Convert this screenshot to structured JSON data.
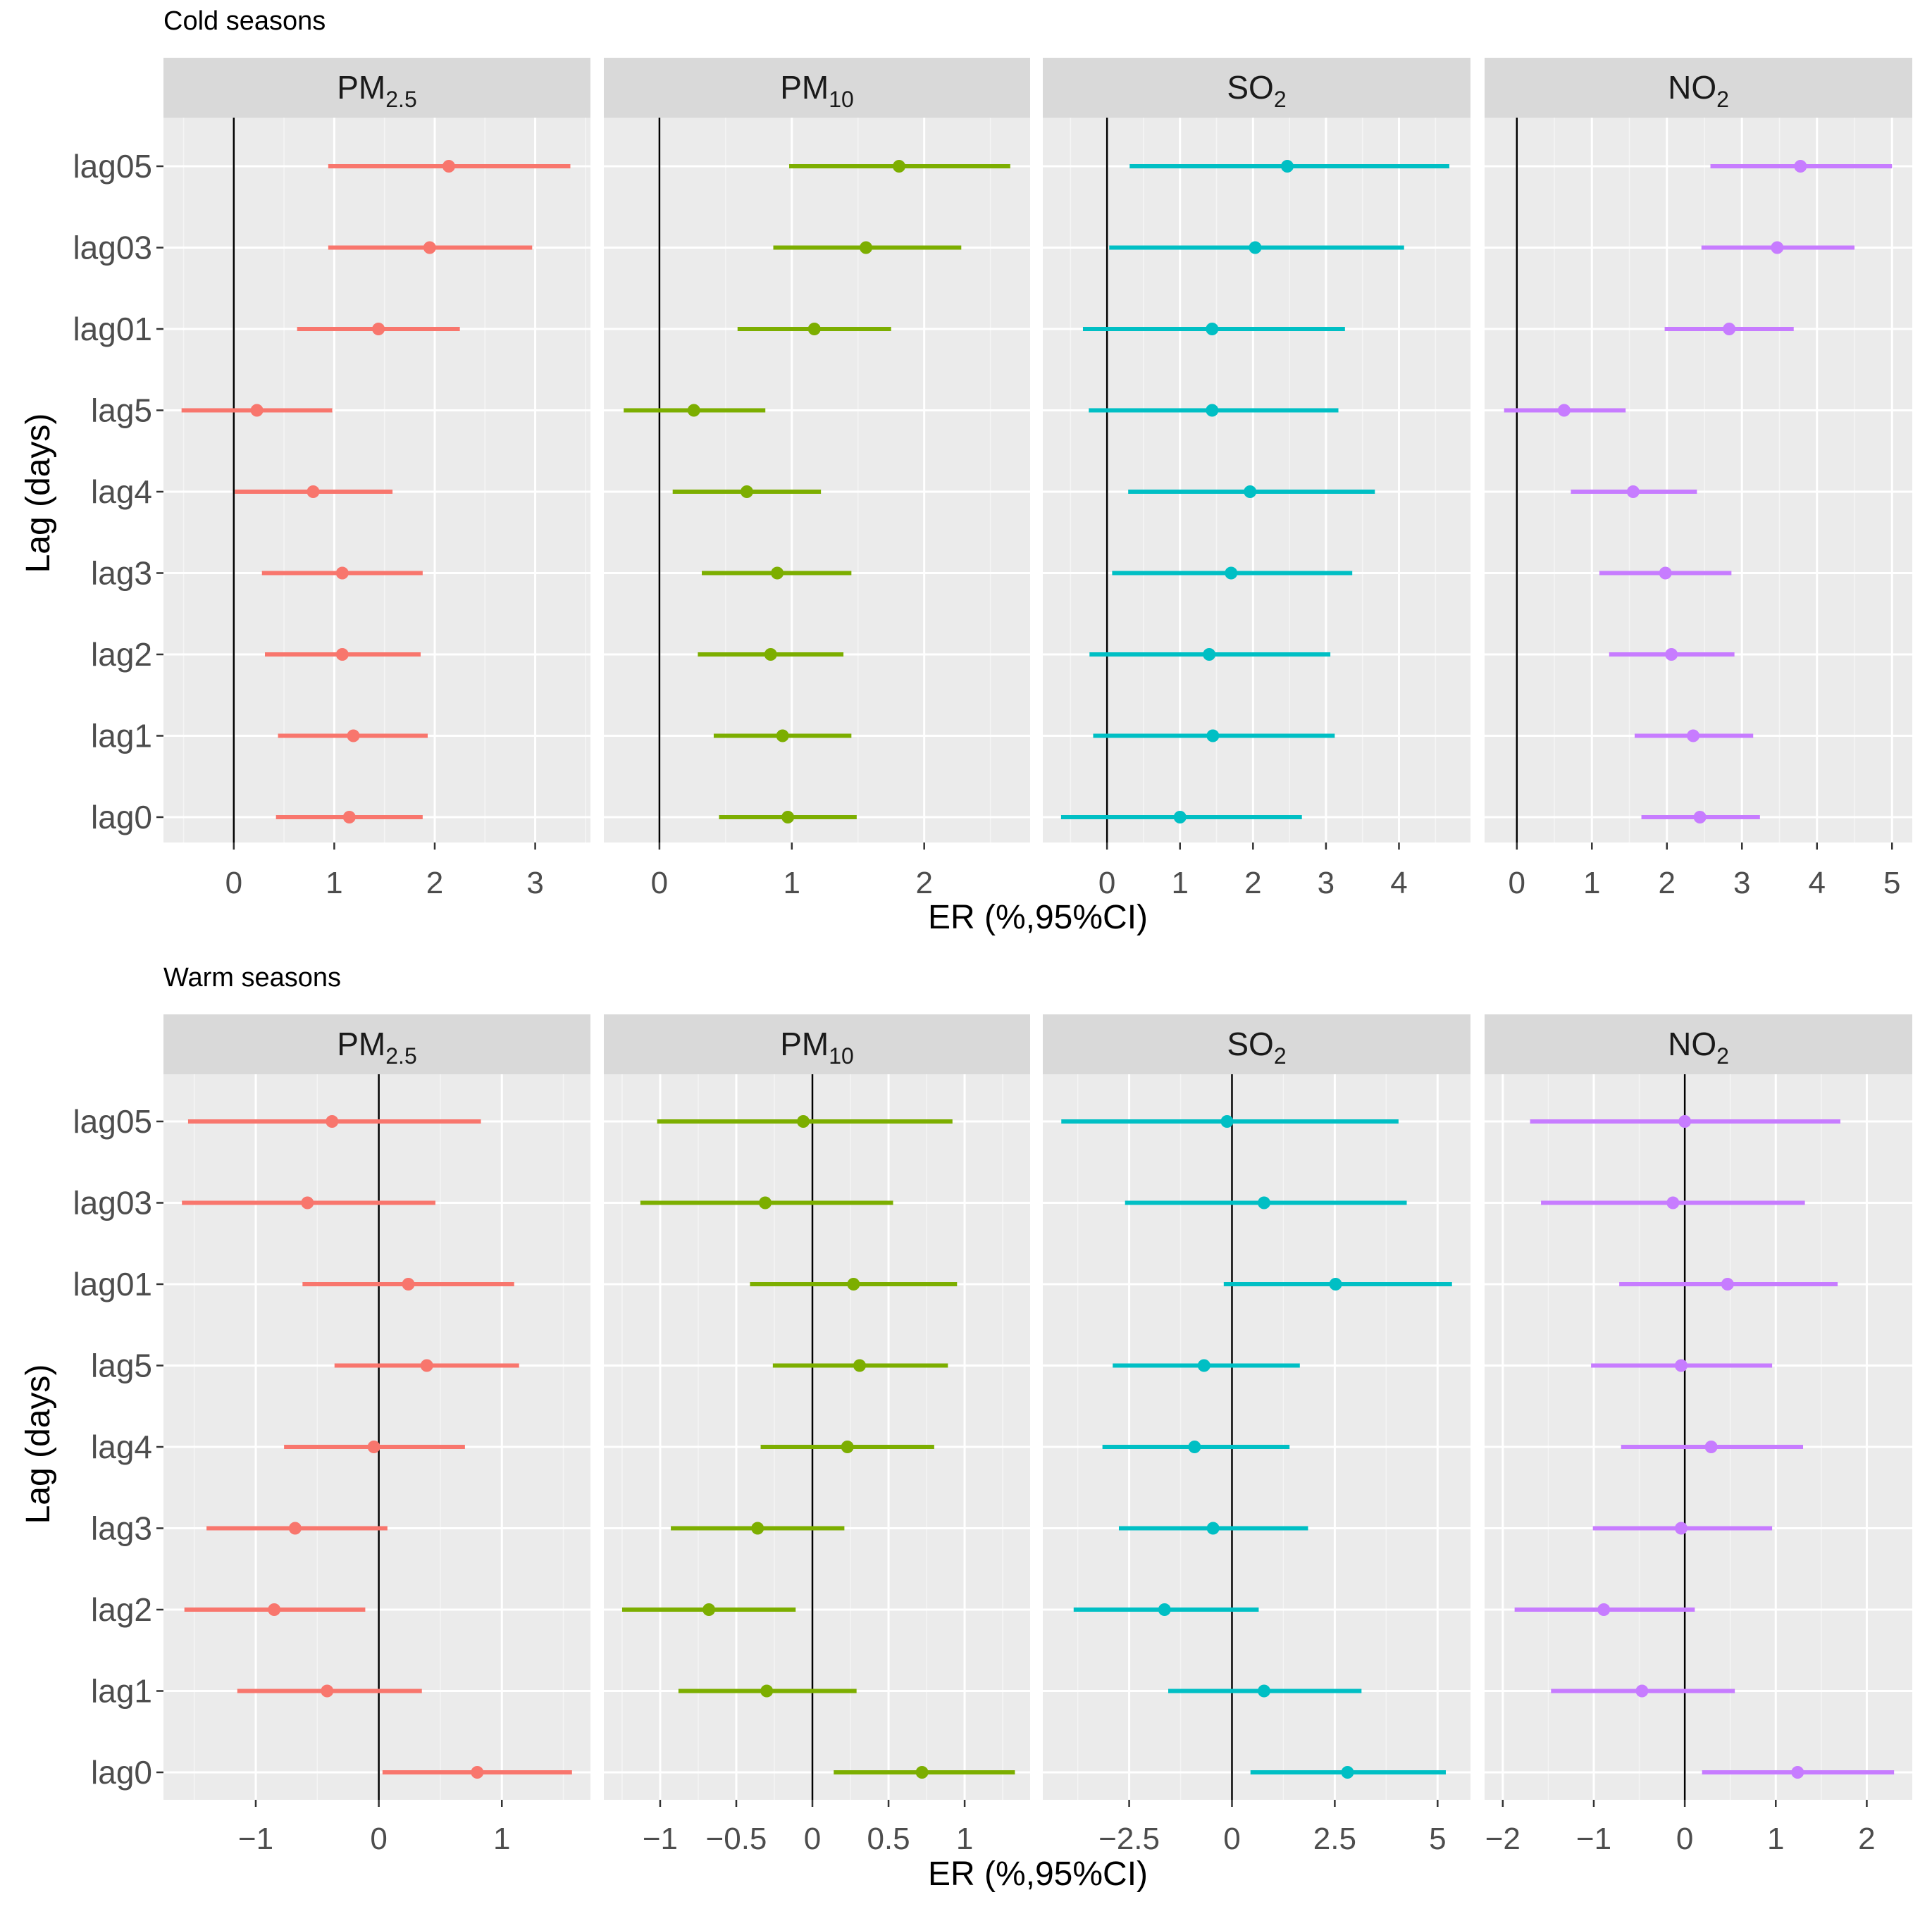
{
  "chart_data": [
    {
      "type": "forest",
      "section_title": "Cold seasons",
      "ylabel": "Lag (days)",
      "xlabel": "ER (%,95%CI)",
      "categories": [
        "lag05",
        "lag03",
        "lag01",
        "lag5",
        "lag4",
        "lag3",
        "lag2",
        "lag1",
        "lag0"
      ],
      "panels": [
        {
          "name": "PM2.5",
          "label_main": "PM",
          "label_sub": "2.5",
          "color": "#F8766D",
          "xlim": [
            -0.7,
            3.55
          ],
          "ticks": [
            0,
            1,
            2,
            3
          ],
          "tick_labels": [
            "0",
            "1",
            "2",
            "3"
          ],
          "estimates": [
            2.14,
            1.95,
            1.44,
            0.23,
            0.79,
            1.08,
            1.08,
            1.19,
            1.15
          ],
          "lower": [
            0.94,
            0.94,
            0.63,
            -0.52,
            0.01,
            0.28,
            0.31,
            0.44,
            0.42
          ],
          "upper": [
            3.35,
            2.97,
            2.25,
            0.98,
            1.58,
            1.88,
            1.86,
            1.93,
            1.88
          ]
        },
        {
          "name": "PM10",
          "label_main": "PM",
          "label_sub": "10",
          "color": "#7CAE00",
          "xlim": [
            -0.42,
            2.8
          ],
          "ticks": [
            0,
            1,
            2
          ],
          "tick_labels": [
            "0",
            "1",
            "2"
          ],
          "estimates": [
            1.81,
            1.56,
            1.17,
            0.26,
            0.66,
            0.89,
            0.84,
            0.93,
            0.97
          ],
          "lower": [
            0.98,
            0.86,
            0.59,
            -0.27,
            0.1,
            0.32,
            0.29,
            0.41,
            0.45
          ],
          "upper": [
            2.65,
            2.28,
            1.75,
            0.8,
            1.22,
            1.45,
            1.39,
            1.45,
            1.49
          ]
        },
        {
          "name": "SO2",
          "label_main": "SO",
          "label_sub": "2",
          "color": "#00BFC4",
          "xlim": [
            -0.88,
            4.98
          ],
          "ticks": [
            0,
            1,
            2,
            3,
            4
          ],
          "tick_labels": [
            "0",
            "1",
            "2",
            "3",
            "4"
          ],
          "estimates": [
            2.47,
            2.03,
            1.44,
            1.44,
            1.96,
            1.7,
            1.4,
            1.45,
            1.0
          ],
          "lower": [
            0.31,
            0.03,
            -0.33,
            -0.25,
            0.29,
            0.07,
            -0.24,
            -0.19,
            -0.63
          ],
          "upper": [
            4.69,
            4.07,
            3.26,
            3.17,
            3.67,
            3.36,
            3.06,
            3.12,
            2.67
          ]
        },
        {
          "name": "NO2",
          "label_main": "NO",
          "label_sub": "2",
          "color": "#C77CFF",
          "xlim": [
            -0.43,
            5.27
          ],
          "ticks": [
            0,
            1,
            2,
            3,
            4,
            5
          ],
          "tick_labels": [
            "0",
            "1",
            "2",
            "3",
            "4",
            "5"
          ],
          "estimates": [
            3.78,
            3.47,
            2.83,
            0.63,
            1.55,
            1.98,
            2.06,
            2.35,
            2.44
          ],
          "lower": [
            2.58,
            2.46,
            1.97,
            -0.17,
            0.72,
            1.1,
            1.23,
            1.57,
            1.66
          ],
          "upper": [
            5.0,
            4.5,
            3.69,
            1.45,
            2.4,
            2.86,
            2.9,
            3.15,
            3.24
          ]
        }
      ]
    },
    {
      "type": "forest",
      "section_title": "Warm seasons",
      "ylabel": "Lag (days)",
      "xlabel": "ER (%,95%CI)",
      "categories": [
        "lag05",
        "lag03",
        "lag01",
        "lag5",
        "lag4",
        "lag3",
        "lag2",
        "lag1",
        "lag0"
      ],
      "panels": [
        {
          "name": "PM2.5",
          "label_main": "PM",
          "label_sub": "2.5",
          "color": "#F8766D",
          "xlim": [
            -1.75,
            1.72
          ],
          "ticks": [
            -1,
            0,
            1
          ],
          "tick_labels": [
            "−1",
            "0",
            "1"
          ],
          "estimates": [
            -0.38,
            -0.58,
            0.24,
            0.39,
            -0.04,
            -0.68,
            -0.85,
            -0.42,
            0.8
          ],
          "lower": [
            -1.55,
            -1.6,
            -0.62,
            -0.36,
            -0.77,
            -1.4,
            -1.58,
            -1.15,
            0.03
          ],
          "upper": [
            0.83,
            0.46,
            1.1,
            1.14,
            0.7,
            0.07,
            -0.11,
            0.35,
            1.57
          ]
        },
        {
          "name": "PM10",
          "label_main": "PM",
          "label_sub": "10",
          "color": "#7CAE00",
          "xlim": [
            -1.37,
            1.43
          ],
          "ticks": [
            -1,
            -0.5,
            0,
            0.5,
            1
          ],
          "tick_labels": [
            "−1",
            "−0.5",
            "0",
            "0.5",
            "1"
          ],
          "estimates": [
            -0.06,
            -0.31,
            0.27,
            0.31,
            0.23,
            -0.36,
            -0.68,
            -0.3,
            0.72
          ],
          "lower": [
            -1.02,
            -1.13,
            -0.41,
            -0.26,
            -0.34,
            -0.93,
            -1.25,
            -0.88,
            0.14
          ],
          "upper": [
            0.92,
            0.53,
            0.95,
            0.89,
            0.8,
            0.21,
            -0.11,
            0.29,
            1.33
          ]
        },
        {
          "name": "SO2",
          "label_main": "SO",
          "label_sub": "2",
          "color": "#00BFC4",
          "xlim": [
            -4.6,
            5.8
          ],
          "ticks": [
            -2.5,
            0,
            2.5,
            5
          ],
          "tick_labels": [
            "−2.5",
            "0",
            "2.5",
            "5"
          ],
          "estimates": [
            -0.12,
            0.78,
            2.52,
            -0.68,
            -0.91,
            -0.46,
            -1.64,
            0.78,
            2.81
          ],
          "lower": [
            -4.15,
            -2.6,
            -0.2,
            -2.9,
            -3.15,
            -2.75,
            -3.85,
            -1.55,
            0.45
          ],
          "upper": [
            4.05,
            4.25,
            5.35,
            1.65,
            1.4,
            1.85,
            0.65,
            3.15,
            5.2
          ]
        },
        {
          "name": "NO2",
          "label_main": "NO",
          "label_sub": "2",
          "color": "#C77CFF",
          "xlim": [
            -2.2,
            2.5
          ],
          "ticks": [
            -2,
            -1,
            0,
            1,
            2
          ],
          "tick_labels": [
            "−2",
            "−1",
            "0",
            "1",
            "2"
          ],
          "estimates": [
            0.0,
            -0.13,
            0.47,
            -0.04,
            0.29,
            -0.04,
            -0.89,
            -0.47,
            1.24
          ],
          "lower": [
            -1.7,
            -1.58,
            -0.72,
            -1.03,
            -0.7,
            -1.01,
            -1.87,
            -1.47,
            0.19
          ],
          "upper": [
            1.71,
            1.32,
            1.68,
            0.96,
            1.3,
            0.96,
            0.11,
            0.55,
            2.3
          ]
        }
      ]
    }
  ]
}
